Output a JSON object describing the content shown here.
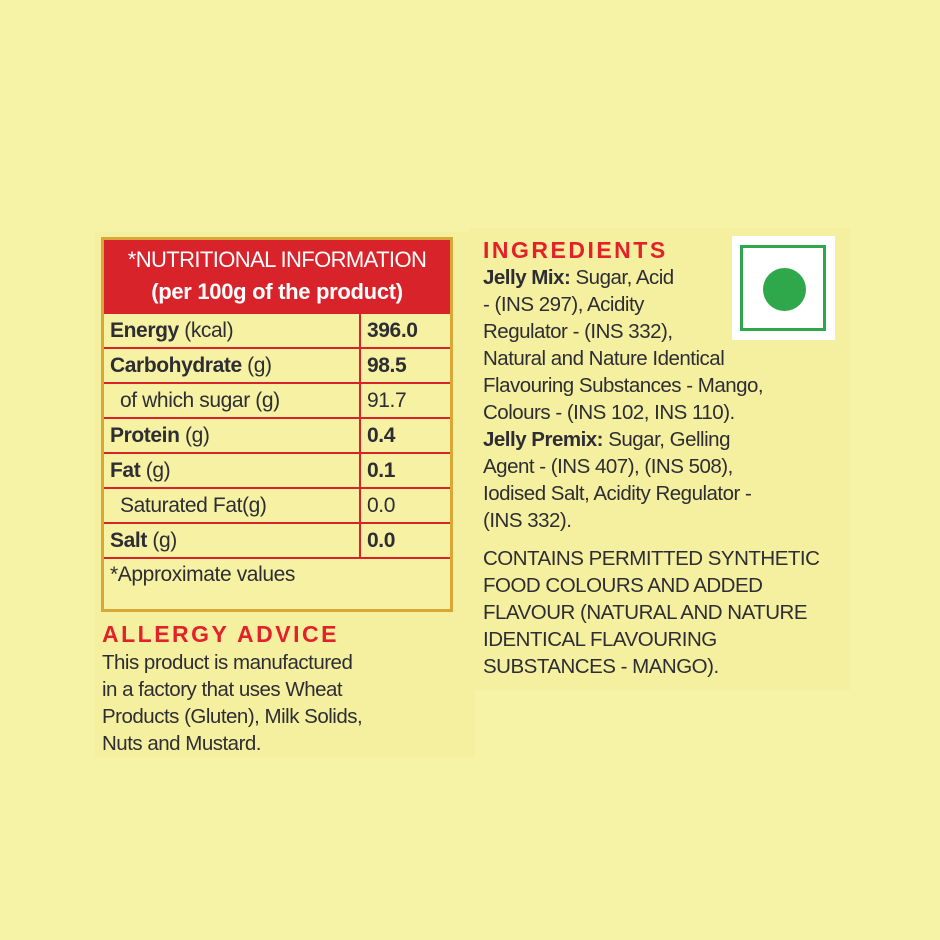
{
  "nutrition": {
    "title_line1": "*NUTRITIONAL INFORMATION",
    "title_line2": "(per 100g of the product)",
    "rows": [
      {
        "name": "Energy",
        "unit": " (kcal)",
        "value": "396.0",
        "bold": true
      },
      {
        "name": "Carbohydrate",
        "unit": " (g)",
        "value": "98.5",
        "bold": true
      },
      {
        "name": "of which sugar (g)",
        "unit": "",
        "value": "91.7",
        "bold": false
      },
      {
        "name": "Protein",
        "unit": " (g)",
        "value": "0.4",
        "bold": true
      },
      {
        "name": "Fat",
        "unit": " (g)",
        "value": "0.1",
        "bold": true
      },
      {
        "name": "Saturated Fat(g)",
        "unit": "",
        "value": "0.0",
        "bold": false
      },
      {
        "name": "Salt",
        "unit": " (g)",
        "value": "0.0",
        "bold": true
      }
    ],
    "footnote": "*Approximate values"
  },
  "allergy": {
    "title": "ALLERGY ADVICE",
    "lines": [
      "This product is manufactured",
      "in a factory that uses Wheat",
      "Products (Gluten), Milk Solids,",
      "Nuts and Mustard."
    ]
  },
  "ingredients": {
    "title": "INGREDIENTS",
    "lines": [
      {
        "bold": "Jelly Mix:",
        "text": " Sugar, Acid"
      },
      {
        "bold": "",
        "text": "- (INS 297), Acidity"
      },
      {
        "bold": "",
        "text": "Regulator - (INS 332),"
      },
      {
        "bold": "",
        "text": "Natural and Nature Identical"
      },
      {
        "bold": "",
        "text": "Flavouring Substances - Mango,"
      },
      {
        "bold": "",
        "text": "Colours - (INS 102, INS 110)."
      },
      {
        "bold": "Jelly Premix:",
        "text": " Sugar, Gelling"
      },
      {
        "bold": "",
        "text": "Agent - (INS 407), (INS 508),"
      },
      {
        "bold": "",
        "text": "Iodised Salt, Acidity Regulator -"
      },
      {
        "bold": "",
        "text": "(INS 332)."
      }
    ],
    "notice": [
      "CONTAINS PERMITTED SYNTHETIC",
      "FOOD COLOURS AND ADDED",
      "FLAVOUR (NATURAL AND NATURE",
      "IDENTICAL FLAVOURING",
      "SUBSTANCES - MANGO)."
    ]
  },
  "veg_mark": {
    "icon": "vegetarian-symbol",
    "color": "#2ea84a"
  },
  "colors": {
    "accent_red": "#e3212b",
    "background": "#f7f3a6",
    "border_gold": "#d9a638"
  }
}
